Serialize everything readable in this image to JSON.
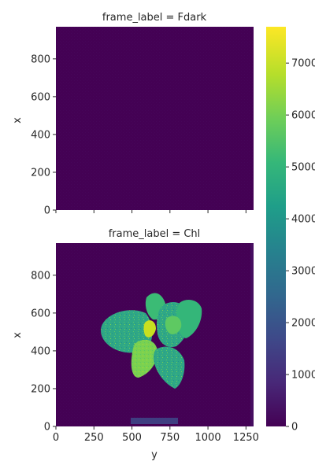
{
  "chart_data": {
    "type": "heatmap",
    "panels": [
      {
        "title": "frame_label = Fdark",
        "xlabel": "",
        "ylabel": "x",
        "xlim": [
          0,
          1300
        ],
        "ylim": [
          0,
          970
        ],
        "yticks": [
          0,
          200,
          400,
          600,
          800
        ],
        "xticks": [
          0,
          250,
          500,
          750,
          1000,
          1250
        ],
        "show_xtick_labels": false
      },
      {
        "title": "frame_label = Chl",
        "xlabel": "y",
        "ylabel": "x",
        "xlim": [
          0,
          1300
        ],
        "ylim": [
          0,
          970
        ],
        "yticks": [
          0,
          200,
          400,
          600,
          800
        ],
        "xticks": [
          0,
          250,
          500,
          750,
          1000,
          1250
        ],
        "show_xtick_labels": true
      }
    ],
    "colorbar": {
      "colormap": "viridis",
      "min": 0,
      "max": 7700,
      "ticks": [
        "0",
        "1000",
        "2000",
        "3000",
        "4000",
        "5000",
        "6000",
        "7000"
      ]
    }
  },
  "colors": {
    "background_dark": "#440154",
    "viridis": [
      "#440154",
      "#482878",
      "#3e4989",
      "#31688e",
      "#26828e",
      "#1f9e89",
      "#35b779",
      "#6ece58",
      "#b5de2b",
      "#fde725"
    ]
  }
}
